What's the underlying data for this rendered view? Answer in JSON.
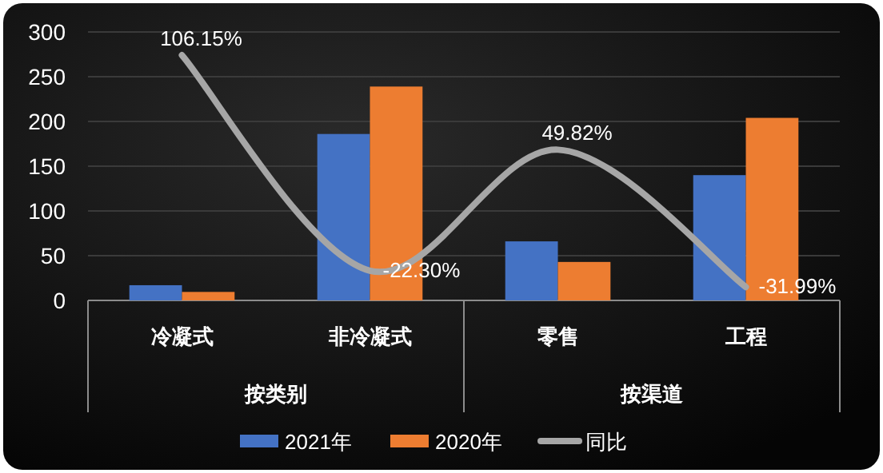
{
  "chart_data": {
    "type": "bar",
    "categories": [
      "冷凝式",
      "非冷凝式",
      "零售",
      "工程"
    ],
    "series": [
      {
        "name": "2021年",
        "color": "#4472c4",
        "values": [
          17,
          186,
          66,
          140
        ]
      },
      {
        "name": "2020年",
        "color": "#ed7d31",
        "values": [
          9.5,
          239,
          43,
          204
        ]
      },
      {
        "name": "同比",
        "type": "line",
        "axis": "y2",
        "color": "#a6a6a6",
        "values": [
          106.15,
          -22.3,
          49.82,
          -31.99
        ],
        "value_labels": [
          "106.15%",
          "-22.30%",
          "49.82%",
          "-31.99%"
        ]
      }
    ],
    "ylim": [
      0,
      300
    ],
    "yticks": [
      0,
      50,
      100,
      150,
      200,
      250,
      300
    ],
    "y2lim": [
      -40,
      120
    ],
    "grid": "y",
    "legend": "bottom",
    "tick_labels": "xy",
    "annotations": [
      "按类别",
      "按渠道"
    ]
  }
}
